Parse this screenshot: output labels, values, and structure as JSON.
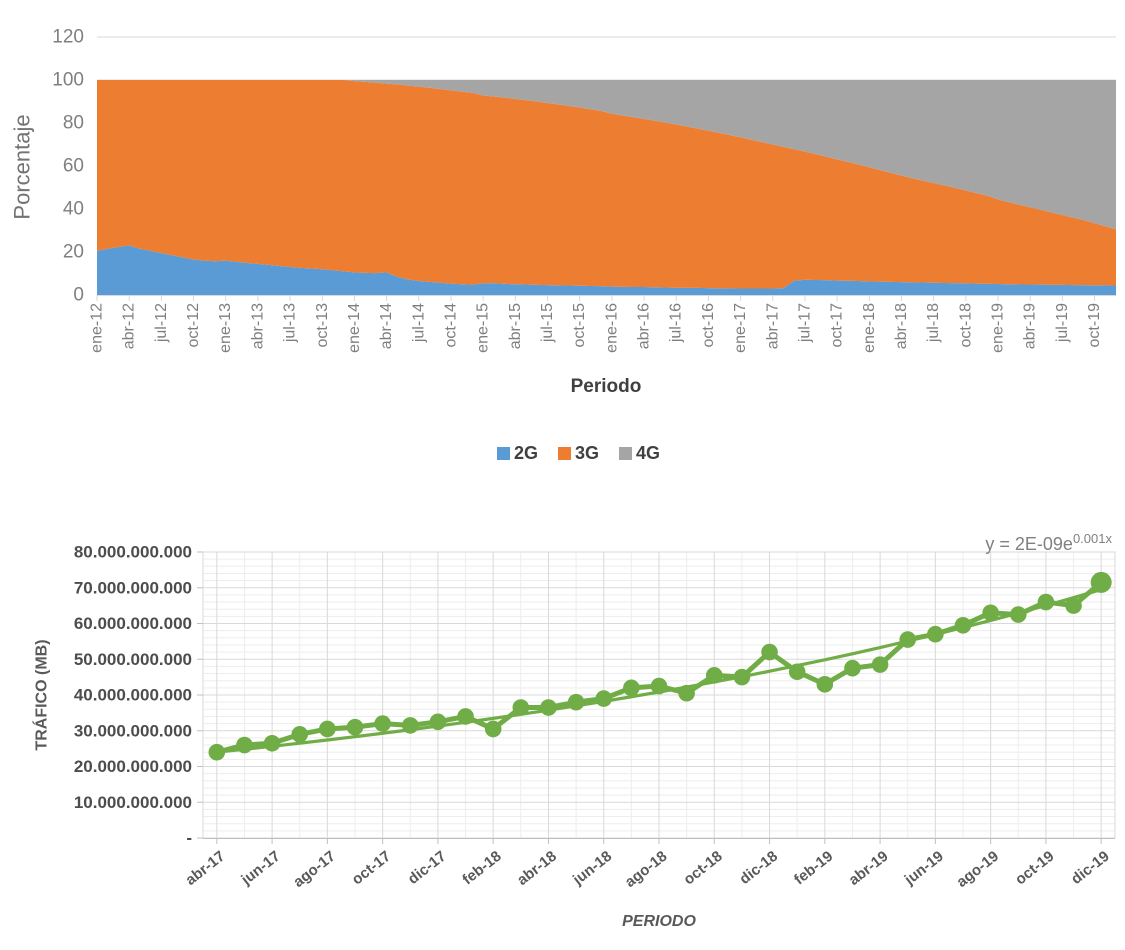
{
  "top_chart": {
    "y_title": "Porcentaje",
    "x_title": "Periodo",
    "legend": [
      {
        "label": "2G",
        "color": "#5B9BD5"
      },
      {
        "label": "3G",
        "color": "#ED7D31"
      },
      {
        "label": "4G",
        "color": "#A5A5A5"
      }
    ]
  },
  "traffic_chart": {
    "y_title": "TRÁFICO (MB)",
    "x_title": "PERIODO",
    "equation_base": "y = 2E-09e",
    "equation_exponent": "0.001x",
    "y_tick_labels": [
      "80.000.000.000",
      "70.000.000.000",
      "60.000.000.000",
      "50.000.000.000",
      "40.000.000.000",
      "30.000.000.000",
      "20.000.000.000",
      "10.000.000.000",
      "-"
    ]
  },
  "chart_data": [
    {
      "type": "area",
      "stacking": "percent",
      "title": "",
      "xlabel": "Periodo",
      "ylabel": "Porcentaje",
      "ylim": [
        0,
        120
      ],
      "y_ticks": [
        0,
        20,
        40,
        60,
        80,
        100,
        120
      ],
      "x_tick_step": 3,
      "legend_position": "bottom",
      "grid": "horizontal-major",
      "categories": [
        "ene-12",
        "feb-12",
        "mar-12",
        "abr-12",
        "may-12",
        "jun-12",
        "jul-12",
        "ago-12",
        "sep-12",
        "oct-12",
        "nov-12",
        "dic-12",
        "ene-13",
        "feb-13",
        "mar-13",
        "abr-13",
        "may-13",
        "jun-13",
        "jul-13",
        "ago-13",
        "sep-13",
        "oct-13",
        "nov-13",
        "dic-13",
        "ene-14",
        "feb-14",
        "mar-14",
        "abr-14",
        "may-14",
        "jun-14",
        "jul-14",
        "ago-14",
        "sep-14",
        "oct-14",
        "nov-14",
        "dic-14",
        "ene-15",
        "feb-15",
        "mar-15",
        "abr-15",
        "may-15",
        "jun-15",
        "jul-15",
        "ago-15",
        "sep-15",
        "oct-15",
        "nov-15",
        "dic-15",
        "ene-16",
        "feb-16",
        "mar-16",
        "abr-16",
        "may-16",
        "jun-16",
        "jul-16",
        "ago-16",
        "sep-16",
        "oct-16",
        "nov-16",
        "dic-16",
        "ene-17",
        "feb-17",
        "mar-17",
        "abr-17",
        "may-17",
        "jun-17",
        "jul-17",
        "ago-17",
        "sep-17",
        "oct-17",
        "nov-17",
        "dic-17",
        "ene-18",
        "feb-18",
        "mar-18",
        "abr-18",
        "may-18",
        "jun-18",
        "jul-18",
        "ago-18",
        "sep-18",
        "oct-18",
        "nov-18",
        "dic-18",
        "ene-19",
        "feb-19",
        "mar-19",
        "abr-19",
        "may-19",
        "jun-19",
        "jul-19",
        "ago-19",
        "sep-19",
        "oct-19",
        "nov-19",
        "dic-19"
      ],
      "series": [
        {
          "name": "2G",
          "color": "#5B9BD5",
          "values": [
            20.5,
            21.5,
            22.3,
            23,
            21.5,
            20.5,
            19.5,
            18.5,
            17.5,
            16.5,
            16,
            15.7,
            16,
            15.4,
            14.9,
            14.5,
            14,
            13.5,
            13,
            12.6,
            12.3,
            12,
            11.5,
            11,
            10.5,
            10.3,
            10.2,
            10.5,
            8.5,
            7.2,
            6.5,
            6.1,
            5.7,
            5.3,
            5,
            4.8,
            5.4,
            5.5,
            5.2,
            5,
            4.9,
            4.7,
            4.6,
            4.5,
            4.4,
            4.3,
            4.2,
            4.1,
            3.9,
            3.8,
            3.7,
            3.7,
            3.6,
            3.5,
            3.4,
            3.3,
            3.3,
            3.2,
            3.1,
            3.1,
            3,
            3,
            3,
            3,
            3.2,
            6.6,
            7.1,
            7,
            6.9,
            6.7,
            6.6,
            6.5,
            6.3,
            6.2,
            6.1,
            6,
            5.9,
            5.8,
            5.7,
            5.6,
            5.5,
            5.4,
            5.3,
            5.2,
            5.1,
            5,
            4.9,
            4.9,
            4.8,
            4.7,
            4.7,
            4.6,
            4.6,
            4.5,
            4.5,
            4.4
          ]
        },
        {
          "name": "3G",
          "color": "#ED7D31",
          "values": [
            79.5,
            78.5,
            77.7,
            77,
            78.5,
            79.5,
            80.5,
            81.5,
            82.5,
            83.5,
            84,
            84.3,
            84,
            84.6,
            85.1,
            85.5,
            86,
            86.5,
            87,
            87.4,
            87.7,
            88,
            88.5,
            89,
            89,
            88.8,
            88.5,
            87.8,
            89.4,
            90.2,
            90.4,
            90.3,
            90.1,
            89.9,
            89.6,
            89.2,
            87.4,
            86.8,
            86.6,
            86.2,
            85.7,
            85.3,
            84.7,
            84.1,
            83.5,
            82.9,
            82.2,
            81.5,
            80.4,
            79.7,
            79,
            78.2,
            77.5,
            76.7,
            75.9,
            75.1,
            74.1,
            73.2,
            72.3,
            71.3,
            70.3,
            69.2,
            68.1,
            67,
            65.7,
            61.2,
            59.6,
            58.5,
            57.4,
            56.4,
            55.3,
            54.2,
            53.1,
            51.9,
            50.7,
            49.5,
            48.4,
            47.4,
            46.4,
            45.4,
            44.3,
            43.2,
            42.1,
            41,
            39.4,
            38.2,
            37.1,
            35.9,
            34.8,
            33.7,
            32.5,
            31.4,
            30.2,
            28.9,
            27.5,
            26.2
          ]
        },
        {
          "name": "4G",
          "color": "#A5A5A5",
          "values": [
            0,
            0,
            0,
            0,
            0,
            0,
            0,
            0,
            0,
            0,
            0,
            0,
            0,
            0,
            0,
            0,
            0,
            0,
            0,
            0,
            0,
            0,
            0,
            0,
            0.5,
            0.9,
            1.3,
            1.7,
            2.1,
            2.6,
            3.1,
            3.6,
            4.2,
            4.8,
            5.4,
            6,
            7.2,
            7.7,
            8.2,
            8.8,
            9.4,
            10,
            10.7,
            11.4,
            12.1,
            12.8,
            13.6,
            14.4,
            15.7,
            16.5,
            17.3,
            18.1,
            18.9,
            19.8,
            20.7,
            21.6,
            22.6,
            23.6,
            24.6,
            25.6,
            26.7,
            27.8,
            28.9,
            30,
            31.1,
            32.2,
            33.3,
            34.5,
            35.7,
            36.9,
            38.1,
            39.3,
            40.6,
            41.9,
            43.2,
            44.5,
            45.7,
            46.8,
            47.9,
            49,
            50.2,
            51.4,
            52.6,
            53.8,
            55.5,
            56.8,
            58,
            59.2,
            60.4,
            61.6,
            62.8,
            64,
            65.2,
            66.6,
            68,
            69.4
          ]
        }
      ]
    },
    {
      "type": "line",
      "title": "",
      "xlabel": "PERIODO",
      "ylabel": "TRÁFICO (MB)",
      "unit": "MB",
      "value_scale": 1000000000,
      "ylim_bn": [
        0,
        80
      ],
      "y_tick_step_bn": 10,
      "x_tick_step": 2,
      "color": "#70AD47",
      "marker": "circle",
      "grid": "major-and-minor",
      "x": [
        "abr-17",
        "may-17",
        "jun-17",
        "jul-17",
        "ago-17",
        "sep-17",
        "oct-17",
        "nov-17",
        "dic-17",
        "ene-18",
        "feb-18",
        "mar-18",
        "abr-18",
        "may-18",
        "jun-18",
        "jul-18",
        "ago-18",
        "sep-18",
        "oct-18",
        "nov-18",
        "dic-18",
        "ene-19",
        "feb-19",
        "mar-19",
        "abr-19",
        "may-19",
        "jun-19",
        "jul-19",
        "ago-19",
        "sep-19",
        "oct-19",
        "nov-19",
        "dic-19"
      ],
      "values_bn": [
        24,
        26,
        26.5,
        29,
        30.5,
        31,
        32,
        31.5,
        32.5,
        34,
        30.5,
        36.5,
        36.5,
        38,
        39,
        42,
        42.5,
        40.5,
        45.5,
        45,
        52,
        46.5,
        43,
        47.5,
        48.5,
        55.5,
        57,
        59.5,
        63,
        62.5,
        66,
        65,
        71.5
      ],
      "trendline": {
        "type": "exponential",
        "equation": "y = 2E-09e^(0.001x)",
        "start_bn": 24,
        "end_bn": 69.5
      }
    }
  ]
}
